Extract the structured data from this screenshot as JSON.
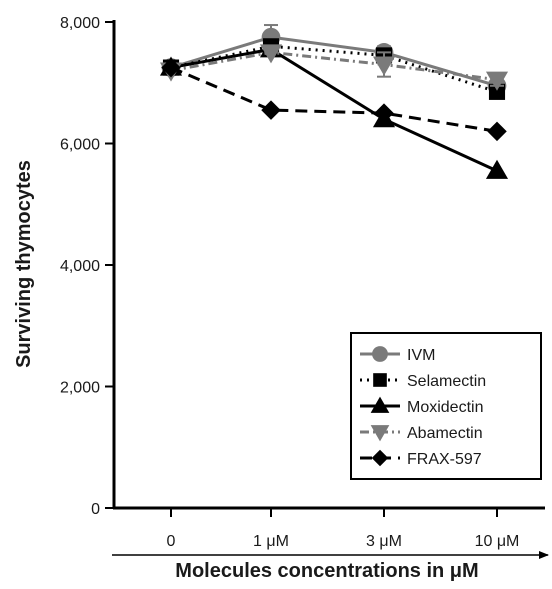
{
  "chart_data": {
    "type": "line",
    "title": "",
    "xlabel": "Molecules concentrations in μM",
    "ylabel": "Surviving thymocytes",
    "categories": [
      "0",
      "1 μM",
      "3 μM",
      "10 μM"
    ],
    "ylim": [
      0,
      8000
    ],
    "yticks": [
      0,
      2000,
      4000,
      6000,
      8000
    ],
    "ytick_labels": [
      "0",
      "2,000",
      "4,000",
      "6,000",
      "8,000"
    ],
    "grid": false,
    "legend_position": "bottom-right",
    "series": [
      {
        "name": "IVM",
        "values": [
          7250,
          7750,
          7500,
          6950
        ],
        "errors": [
          0,
          200,
          100,
          80
        ],
        "color": "#7a7a7a",
        "marker": "circle",
        "dash": "solid"
      },
      {
        "name": "Selamectin",
        "values": [
          7250,
          7600,
          7450,
          6850
        ],
        "errors": [
          0,
          100,
          100,
          100
        ],
        "color": "#000000",
        "marker": "square",
        "dash": "dotted"
      },
      {
        "name": "Moxidectin",
        "values": [
          7250,
          7550,
          6400,
          5550
        ],
        "errors": [
          0,
          0,
          0,
          0
        ],
        "color": "#000000",
        "marker": "triangle-up",
        "dash": "solid"
      },
      {
        "name": "Abamectin",
        "values": [
          7200,
          7500,
          7300,
          7050
        ],
        "errors": [
          0,
          0,
          200,
          100
        ],
        "color": "#7a7a7a",
        "marker": "triangle-down",
        "dash": "dashdot"
      },
      {
        "name": "FRAX-597",
        "values": [
          7250,
          6550,
          6500,
          6200
        ],
        "errors": [
          0,
          0,
          0,
          0
        ],
        "color": "#000000",
        "marker": "diamond",
        "dash": "dashed"
      }
    ]
  }
}
